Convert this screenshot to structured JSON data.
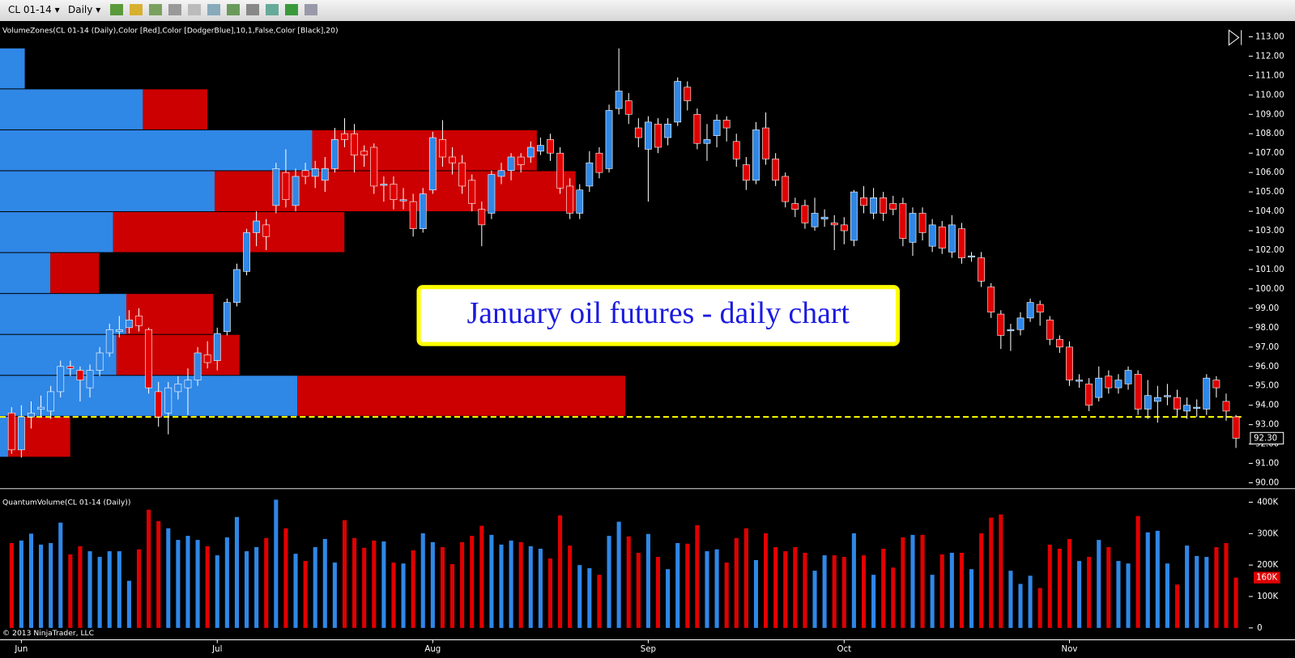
{
  "toolbar": {
    "instrument": "CL 01-14",
    "period": "Daily"
  },
  "chart_data": {
    "type": "candlestick",
    "indicator_label": "VolumeZones(CL 01-14 (Daily),Color [Red],Color [DodgerBlue],10,1,False,Color [Black],20)",
    "annotation": "January oil futures - daily chart",
    "copyright": "© 2013 NinjaTrader, LLC",
    "up_color": "#2f87e6",
    "down_color": "#e00000",
    "categories": [
      null,
      "Jun",
      null,
      null,
      null,
      null,
      null,
      null,
      null,
      null,
      null,
      null,
      null,
      null,
      null,
      null,
      null,
      null,
      null,
      null,
      null,
      "Jul",
      null,
      null,
      null,
      null,
      null,
      null,
      null,
      null,
      null,
      null,
      null,
      null,
      null,
      null,
      null,
      null,
      null,
      null,
      null,
      null,
      null,
      "Aug",
      null,
      null,
      null,
      null,
      null,
      null,
      null,
      null,
      null,
      null,
      null,
      null,
      null,
      null,
      null,
      null,
      null,
      null,
      null,
      null,
      null,
      "Sep",
      null,
      null,
      null,
      null,
      null,
      null,
      null,
      null,
      null,
      null,
      null,
      null,
      null,
      null,
      null,
      null,
      null,
      null,
      null,
      "Oct",
      null,
      null,
      null,
      null,
      null,
      null,
      null,
      null,
      null,
      null,
      null,
      null,
      null,
      null,
      null,
      null,
      null,
      null,
      null,
      null,
      null,
      null,
      "Nov",
      null,
      null,
      null,
      null,
      null,
      null,
      null,
      null,
      null,
      null,
      null,
      null,
      null,
      null,
      null,
      null,
      null
    ],
    "open": [
      93.6,
      91.7,
      93.4,
      93.8,
      93.7,
      94.7,
      96.0,
      95.8,
      94.9,
      95.8,
      96.7,
      97.8,
      98.0,
      98.6,
      97.9,
      94.7,
      93.6,
      94.7,
      94.9,
      95.3,
      96.6,
      96.3,
      97.8,
      99.3,
      100.9,
      102.9,
      103.3,
      104.3,
      106.0,
      104.3,
      106.1,
      105.8,
      105.6,
      106.2,
      108.0,
      108.0,
      107.1,
      107.3,
      105.4,
      105.4,
      104.6,
      104.5,
      103.1,
      105.1,
      107.7,
      106.8,
      106.5,
      105.6,
      104.1,
      103.9,
      105.8,
      106.1,
      106.8,
      106.8,
      107.1,
      107.7,
      107.0,
      105.3,
      103.9,
      105.3,
      107.0,
      106.2,
      109.3,
      109.7,
      108.3,
      107.2,
      108.5,
      107.8,
      108.6,
      110.4,
      109.0,
      107.5,
      107.9,
      108.7,
      107.6,
      106.4,
      105.6,
      108.3,
      106.7,
      105.8,
      104.4,
      104.3,
      103.2,
      103.6,
      103.4,
      103.3,
      102.5,
      104.7,
      103.9,
      104.7,
      104.4,
      104.4,
      102.4,
      103.9,
      102.2,
      103.2,
      101.9,
      103.1,
      101.7,
      101.6,
      100.1,
      98.7,
      97.9,
      97.9,
      98.5,
      99.2,
      98.4,
      97.4,
      97.0,
      95.3,
      95.1,
      94.4,
      95.5,
      94.9,
      95.1,
      95.6,
      93.8,
      94.2,
      94.5,
      94.4,
      93.7,
      93.9,
      93.8,
      95.3,
      94.2,
      93.4
    ],
    "high": [
      93.9,
      94.0,
      94.2,
      94.5,
      95.0,
      96.3,
      96.3,
      96.0,
      96.1,
      97.0,
      98.2,
      98.6,
      98.9,
      99.0,
      98.0,
      95.2,
      95.2,
      95.5,
      95.9,
      97.0,
      97.3,
      98.0,
      99.5,
      101.3,
      103.1,
      104.0,
      103.6,
      106.5,
      107.2,
      106.2,
      106.5,
      106.6,
      106.8,
      108.3,
      108.8,
      108.5,
      107.4,
      107.5,
      105.8,
      105.8,
      105.2,
      104.9,
      105.2,
      108.1,
      108.7,
      107.3,
      106.9,
      105.9,
      104.5,
      106.1,
      106.5,
      107.0,
      107.0,
      107.6,
      107.8,
      108.0,
      107.3,
      105.7,
      105.4,
      107.1,
      107.3,
      109.5,
      112.4,
      110.1,
      108.8,
      108.9,
      108.8,
      108.8,
      110.9,
      110.7,
      109.3,
      108.5,
      109.0,
      108.9,
      108.0,
      106.8,
      108.6,
      109.1,
      107.0,
      106.0,
      104.7,
      104.6,
      104.7,
      104.1,
      103.8,
      103.7,
      105.1,
      105.3,
      105.2,
      105.0,
      104.8,
      104.7,
      104.2,
      104.2,
      103.6,
      103.5,
      103.8,
      103.4,
      101.9,
      101.9,
      100.3,
      98.9,
      98.2,
      98.8,
      99.5,
      99.4,
      98.6,
      97.6,
      97.3,
      95.6,
      95.4,
      96.0,
      95.8,
      95.6,
      96.0,
      95.8,
      95.3,
      95.0,
      95.1,
      94.8,
      94.4,
      94.3,
      95.6,
      95.5,
      94.6,
      93.5
    ],
    "low": [
      91.5,
      91.3,
      92.8,
      93.4,
      93.3,
      94.4,
      95.5,
      94.2,
      94.4,
      95.5,
      96.5,
      97.5,
      97.7,
      97.8,
      94.6,
      92.9,
      92.5,
      94.3,
      93.5,
      95.0,
      95.9,
      95.8,
      97.6,
      99.1,
      100.7,
      102.2,
      102.0,
      103.9,
      104.2,
      104.0,
      105.4,
      105.2,
      105.0,
      106.0,
      107.3,
      106.0,
      106.3,
      104.9,
      104.5,
      104.1,
      104.1,
      102.7,
      102.9,
      104.9,
      106.3,
      105.9,
      104.9,
      104.0,
      102.2,
      103.6,
      105.4,
      105.6,
      106.0,
      106.5,
      106.9,
      106.6,
      104.9,
      103.6,
      103.6,
      105.0,
      105.7,
      106.0,
      109.0,
      108.5,
      107.3,
      104.5,
      107.0,
      107.4,
      108.4,
      109.2,
      107.2,
      106.6,
      107.3,
      107.6,
      106.3,
      105.1,
      105.4,
      106.4,
      105.3,
      104.2,
      103.7,
      103.1,
      103.0,
      103.2,
      102.0,
      102.3,
      102.2,
      103.9,
      103.6,
      103.5,
      103.8,
      102.2,
      101.7,
      102.5,
      101.9,
      101.8,
      101.6,
      101.3,
      101.4,
      100.1,
      98.5,
      96.9,
      96.8,
      97.6,
      98.3,
      98.1,
      97.1,
      96.7,
      95.0,
      94.9,
      93.7,
      94.2,
      94.6,
      94.6,
      94.8,
      93.5,
      93.3,
      93.1,
      94.0,
      93.4,
      93.3,
      93.4,
      93.5,
      94.4,
      93.2,
      91.8
    ],
    "close": [
      91.7,
      93.4,
      93.6,
      93.9,
      94.7,
      96.0,
      95.9,
      95.3,
      95.8,
      96.7,
      97.9,
      97.9,
      98.4,
      98.1,
      94.9,
      93.4,
      94.9,
      95.1,
      95.3,
      96.7,
      96.2,
      97.7,
      99.3,
      101.0,
      102.9,
      103.5,
      102.7,
      106.2,
      104.6,
      105.8,
      105.8,
      106.2,
      106.2,
      107.7,
      107.7,
      106.9,
      106.9,
      105.3,
      105.4,
      104.6,
      104.6,
      103.1,
      104.9,
      107.8,
      106.8,
      106.5,
      105.3,
      104.4,
      103.3,
      105.9,
      106.1,
      106.8,
      106.4,
      107.3,
      107.4,
      107.0,
      105.2,
      103.9,
      105.1,
      106.5,
      106.0,
      109.2,
      110.2,
      109.0,
      107.8,
      108.6,
      107.3,
      108.5,
      110.7,
      109.7,
      107.5,
      107.7,
      108.7,
      108.3,
      106.7,
      105.6,
      108.2,
      106.7,
      105.6,
      104.5,
      104.1,
      103.4,
      103.9,
      103.7,
      103.3,
      103.0,
      105.0,
      104.3,
      104.7,
      103.9,
      104.1,
      102.6,
      103.9,
      102.9,
      103.3,
      102.1,
      103.3,
      101.6,
      101.7,
      100.4,
      98.8,
      97.6,
      97.9,
      98.5,
      99.3,
      98.8,
      97.4,
      97.0,
      95.3,
      95.3,
      94.0,
      95.4,
      94.9,
      95.3,
      95.8,
      93.8,
      94.5,
      94.4,
      94.5,
      93.8,
      94.0,
      93.9,
      95.4,
      94.9,
      93.7,
      92.3
    ],
    "ylim": [
      89.7,
      113.64
    ],
    "yticks": [
      {
        "value": 90,
        "label": "90.00"
      },
      {
        "value": 91,
        "label": "91.00"
      },
      {
        "value": 92,
        "label": "92.00"
      },
      {
        "value": 93,
        "label": "93.00"
      },
      {
        "value": 94,
        "label": "94.00"
      },
      {
        "value": 95,
        "label": "95.00"
      },
      {
        "value": 96,
        "label": "96.00"
      },
      {
        "value": 97,
        "label": "97.00"
      },
      {
        "value": 98,
        "label": "98.00"
      },
      {
        "value": 99,
        "label": "99.00"
      },
      {
        "value": 100,
        "label": "100.00"
      },
      {
        "value": 101,
        "label": "101.00"
      },
      {
        "value": 102,
        "label": "102.00"
      },
      {
        "value": 103,
        "label": "103.00"
      },
      {
        "value": 104,
        "label": "104.00"
      },
      {
        "value": 105,
        "label": "105.00"
      },
      {
        "value": 106,
        "label": "106.00"
      },
      {
        "value": 107,
        "label": "107.00"
      },
      {
        "value": 108,
        "label": "108.00"
      },
      {
        "value": 109,
        "label": "109.00"
      },
      {
        "value": 110,
        "label": "110.00"
      },
      {
        "value": 111,
        "label": "111.00"
      },
      {
        "value": 112,
        "label": "112.00"
      },
      {
        "value": 113,
        "label": "113.00"
      }
    ],
    "last_price_label": "92.30",
    "support_line": {
      "value": 93.4,
      "color": "#ffff00"
    },
    "volume_zones": {
      "up_color": "#2f87e6",
      "down_color": "#cc0000",
      "up": [
        30,
        173,
        378,
        260,
        137,
        61,
        153,
        141,
        360,
        10
      ],
      "down": [
        0,
        78,
        272,
        437,
        280,
        59,
        105,
        149,
        397,
        75
      ]
    },
    "volume": {
      "label": "QuantumVolume(CL 01-14 (Daily))",
      "values": [
        270000,
        278000,
        300000,
        265000,
        270000,
        335000,
        234000,
        260000,
        244000,
        226000,
        244000,
        244000,
        150000,
        250000,
        376000,
        340000,
        317000,
        280000,
        293000,
        280000,
        260000,
        231000,
        288000,
        353000,
        244000,
        257000,
        286000,
        408000,
        317000,
        236000,
        213000,
        257000,
        283000,
        208000,
        343000,
        286000,
        255000,
        278000,
        275000,
        208000,
        205000,
        247000,
        301000,
        273000,
        257000,
        203000,
        273000,
        293000,
        325000,
        296000,
        265000,
        278000,
        273000,
        260000,
        252000,
        221000,
        358000,
        262000,
        200000,
        190000,
        169000,
        293000,
        338000,
        291000,
        239000,
        299000,
        226000,
        187000,
        270000,
        268000,
        327000,
        244000,
        250000,
        208000,
        286000,
        317000,
        216000,
        301000,
        257000,
        244000,
        257000,
        239000,
        182000,
        231000,
        231000,
        226000,
        301000,
        231000,
        169000,
        252000,
        192000,
        288000,
        296000,
        296000,
        169000,
        234000,
        239000,
        239000,
        187000,
        301000,
        351000,
        361000,
        182000,
        140000,
        166000,
        127000,
        265000,
        252000,
        283000,
        213000,
        226000,
        280000,
        257000,
        213000,
        205000,
        356000,
        304000,
        309000,
        205000,
        138000,
        262000,
        229000,
        226000,
        257000,
        270000,
        160000
      ],
      "ylim": [
        -30000,
        430000
      ],
      "yticks": [
        0,
        {
          "value": 100000,
          "label": "100K"
        },
        {
          "value": 200000,
          "label": "200K"
        },
        {
          "value": 300000,
          "label": "300K"
        },
        {
          "value": 400000,
          "label": "400K"
        }
      ],
      "last_volume_label": "160K"
    }
  }
}
